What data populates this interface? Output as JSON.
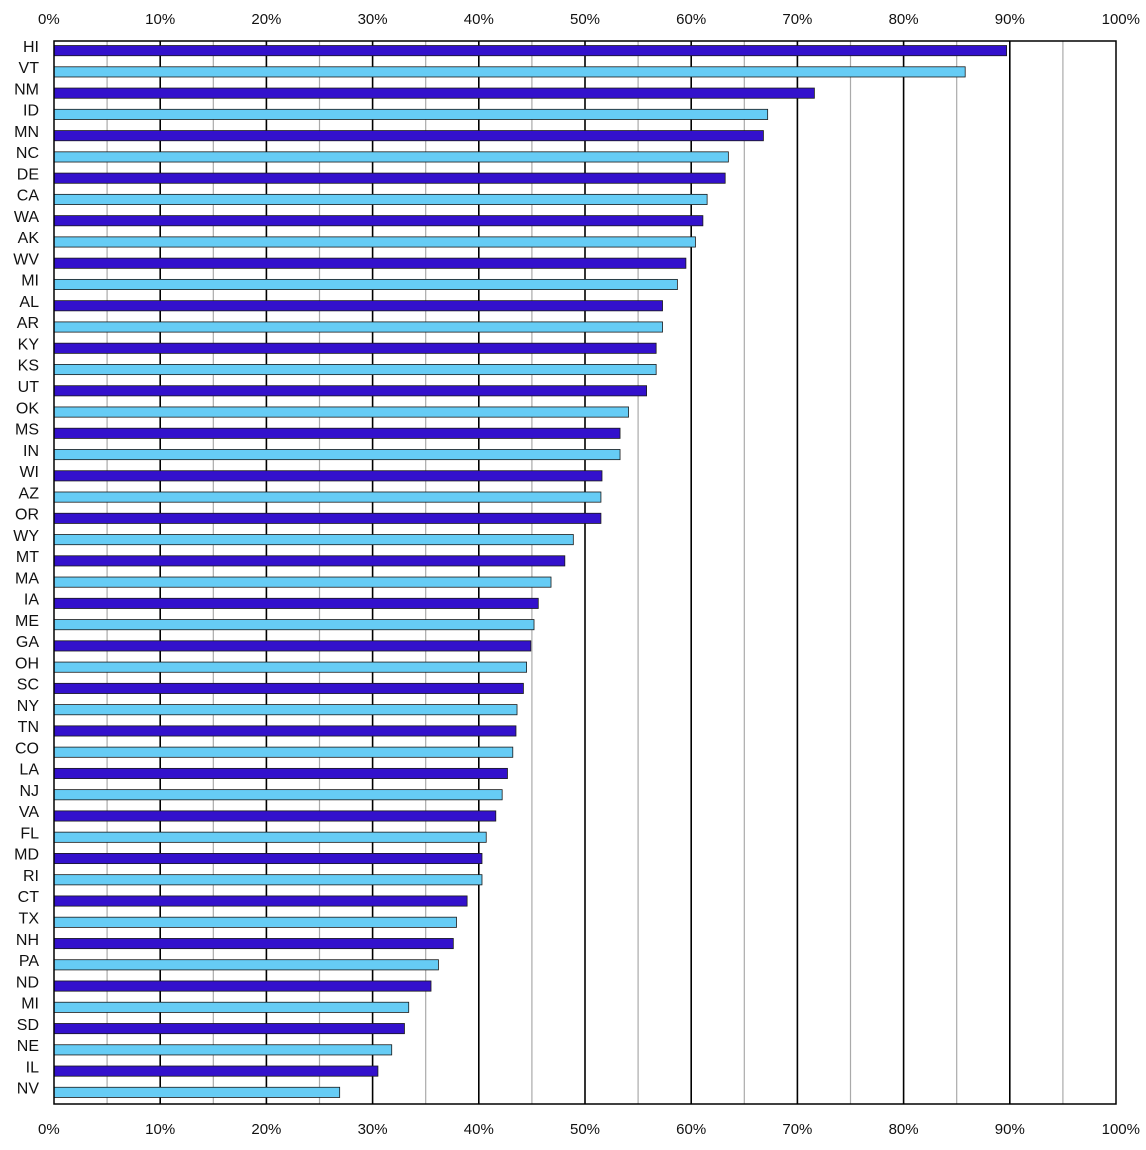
{
  "chart_data": {
    "type": "bar",
    "orientation": "horizontal",
    "title": "",
    "xlabel": "",
    "ylabel": "",
    "xlim": [
      0,
      100
    ],
    "x_ticks": [
      "0%",
      "10%",
      "20%",
      "30%",
      "40%",
      "50%",
      "60%",
      "70%",
      "80%",
      "90%",
      "100%"
    ],
    "x_tick_values": [
      0,
      10,
      20,
      30,
      40,
      50,
      60,
      70,
      80,
      90,
      100
    ],
    "x_axis_positions": [
      "top",
      "bottom"
    ],
    "grid": true,
    "legend": "none",
    "categories": [
      "HI",
      "VT",
      "NM",
      "ID",
      "MN",
      "NC",
      "DE",
      "CA",
      "WA",
      "AK",
      "WV",
      "MI",
      "AL",
      "AR",
      "KY",
      "KS",
      "UT",
      "OK",
      "MS",
      "IN",
      "WI",
      "AZ",
      "OR",
      "WY",
      "MT",
      "MA",
      "IA",
      "ME",
      "GA",
      "OH",
      "SC",
      "NY",
      "TN",
      "CO",
      "LA",
      "NJ",
      "VA",
      "FL",
      "MD",
      "RI",
      "CT",
      "TX",
      "NH",
      "PA",
      "ND",
      "MI",
      "SD",
      "NE",
      "IL",
      "NV"
    ],
    "values": [
      89.7,
      85.8,
      71.6,
      67.2,
      66.8,
      63.5,
      63.2,
      61.5,
      61.1,
      60.4,
      59.5,
      58.7,
      57.3,
      57.3,
      56.7,
      56.7,
      55.8,
      54.1,
      53.3,
      53.3,
      51.6,
      51.5,
      51.5,
      48.9,
      48.1,
      46.8,
      45.6,
      45.2,
      44.9,
      44.5,
      44.2,
      43.6,
      43.5,
      43.2,
      42.7,
      42.2,
      41.6,
      40.7,
      40.3,
      40.3,
      38.9,
      37.9,
      37.6,
      36.2,
      35.5,
      33.4,
      33.0,
      31.8,
      30.5,
      26.9
    ],
    "colors": {
      "bar_dark": "#3311cc",
      "bar_light": "#66ccf5",
      "bar_stroke": "#1a1a1a",
      "grid_major": "#000000",
      "grid_minor": "#aaaaaa"
    }
  }
}
